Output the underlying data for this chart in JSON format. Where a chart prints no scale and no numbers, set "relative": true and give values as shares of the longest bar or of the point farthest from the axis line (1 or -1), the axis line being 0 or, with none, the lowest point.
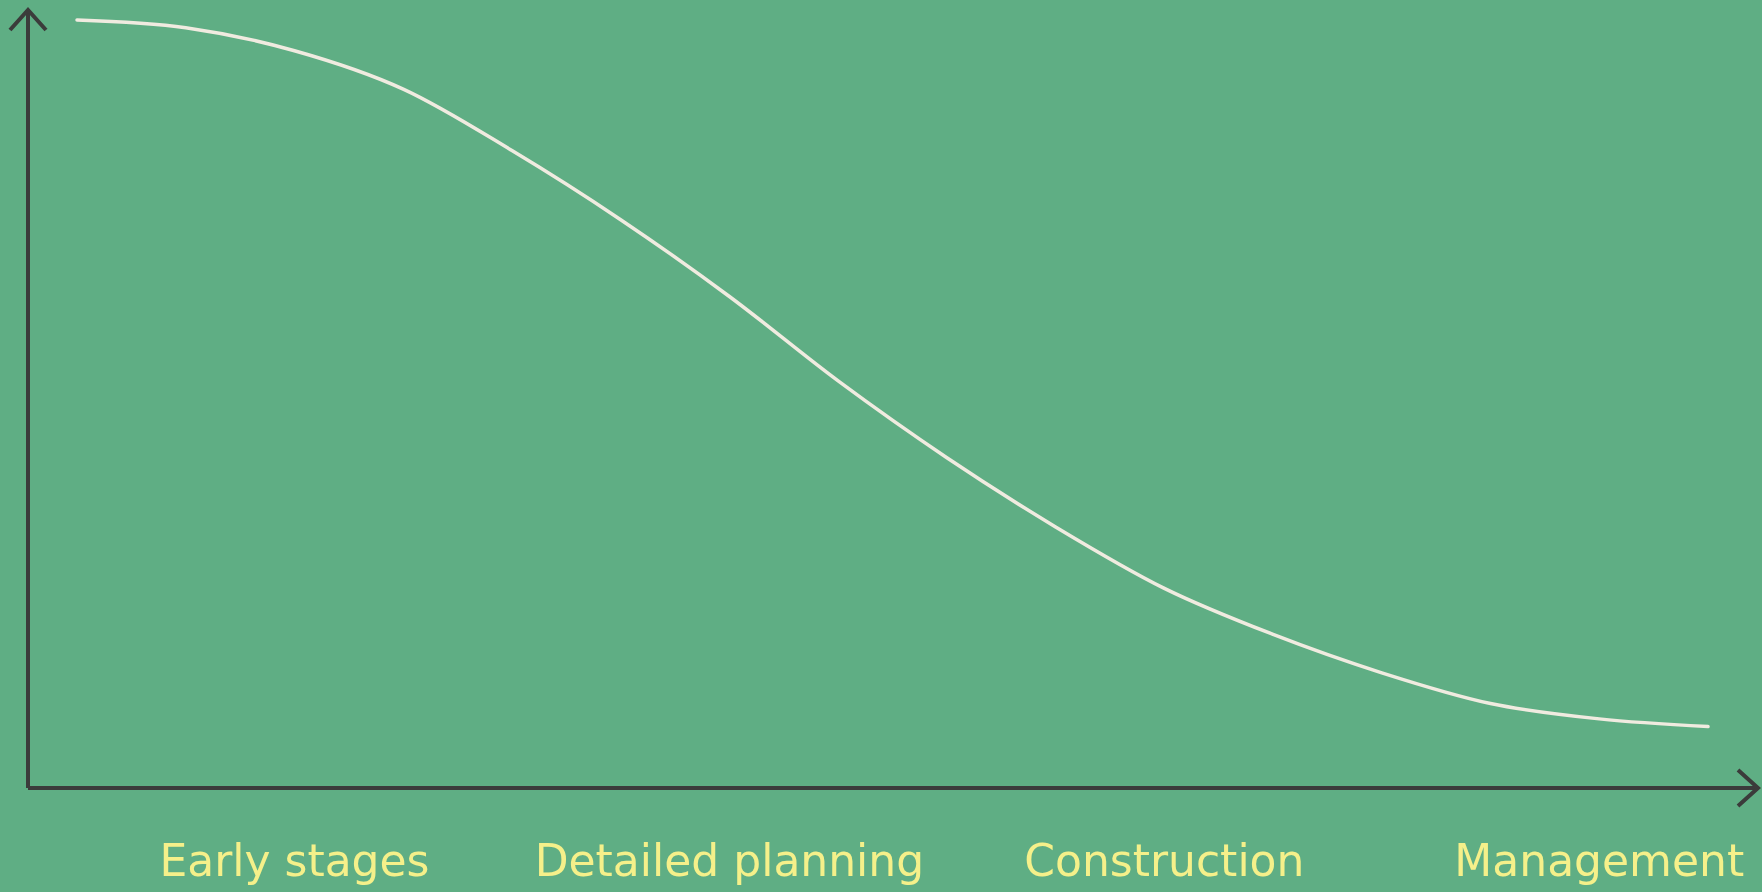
{
  "chart_data": {
    "type": "line",
    "relative": true,
    "color": "#f0ebe0",
    "categories": [
      null,
      null,
      "Early stages",
      null,
      null,
      null,
      "Detailed planning",
      null,
      null,
      null,
      "Construction",
      null,
      null,
      null,
      "Management",
      null
    ],
    "values": [
      1,
      0.99,
      0.96,
      0.91,
      0.83,
      0.74,
      0.64,
      0.53,
      0.43,
      0.34,
      0.26,
      0.2,
      0.15,
      0.11,
      0.09,
      0.08
    ]
  }
}
